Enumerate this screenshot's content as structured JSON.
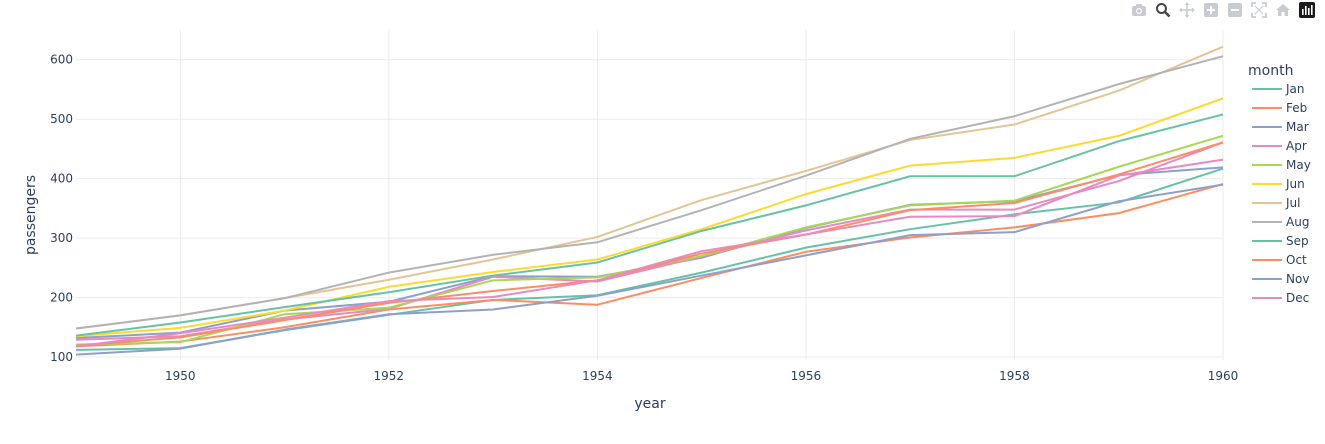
{
  "modebar": {
    "buttons": [
      "camera-icon",
      "zoom-icon",
      "pan-icon",
      "zoom-in-icon",
      "zoom-out-icon",
      "autoscale-icon",
      "reset-axes-icon",
      "plotly-logo-icon"
    ]
  },
  "chart_data": {
    "type": "line",
    "xlabel": "year",
    "ylabel": "passengers",
    "legend_title": "month",
    "legend_position": "right",
    "grid": true,
    "xlim": [
      1949,
      1960
    ],
    "ylim": [
      95,
      650
    ],
    "xticks": [
      1950,
      1952,
      1954,
      1956,
      1958,
      1960
    ],
    "yticks": [
      100,
      200,
      300,
      400,
      500,
      600
    ],
    "x": [
      1949,
      1950,
      1951,
      1952,
      1953,
      1954,
      1955,
      1956,
      1957,
      1958,
      1959,
      1960
    ],
    "series": [
      {
        "name": "Jan",
        "color": "#66c2a5",
        "values": [
          112,
          115,
          145,
          171,
          196,
          204,
          242,
          284,
          315,
          340,
          360,
          417
        ]
      },
      {
        "name": "Feb",
        "color": "#fc8d62",
        "values": [
          118,
          126,
          150,
          180,
          196,
          188,
          233,
          277,
          301,
          318,
          342,
          391
        ]
      },
      {
        "name": "Mar",
        "color": "#8da0cb",
        "values": [
          132,
          141,
          178,
          193,
          236,
          235,
          267,
          317,
          356,
          362,
          406,
          419
        ]
      },
      {
        "name": "Apr",
        "color": "#e78ac3",
        "values": [
          129,
          135,
          163,
          181,
          235,
          227,
          269,
          313,
          348,
          348,
          396,
          461
        ]
      },
      {
        "name": "May",
        "color": "#a6d854",
        "values": [
          121,
          125,
          172,
          183,
          229,
          234,
          270,
          318,
          355,
          363,
          420,
          472
        ]
      },
      {
        "name": "Jun",
        "color": "#ffd92f",
        "values": [
          135,
          149,
          178,
          218,
          243,
          264,
          315,
          374,
          422,
          435,
          472,
          535
        ]
      },
      {
        "name": "Jul",
        "color": "#e5c494",
        "values": [
          148,
          170,
          199,
          230,
          264,
          302,
          364,
          413,
          465,
          491,
          548,
          622
        ]
      },
      {
        "name": "Aug",
        "color": "#b3b3b3",
        "values": [
          148,
          170,
          199,
          242,
          272,
          293,
          347,
          405,
          467,
          505,
          559,
          606
        ]
      },
      {
        "name": "Sep",
        "color": "#66c2a5",
        "values": [
          136,
          158,
          184,
          209,
          237,
          259,
          312,
          355,
          404,
          404,
          463,
          508
        ]
      },
      {
        "name": "Oct",
        "color": "#fc8d62",
        "values": [
          119,
          133,
          162,
          191,
          211,
          229,
          274,
          306,
          347,
          359,
          407,
          461
        ]
      },
      {
        "name": "Nov",
        "color": "#8da0cb",
        "values": [
          104,
          114,
          146,
          172,
          180,
          203,
          237,
          271,
          305,
          310,
          362,
          390
        ]
      },
      {
        "name": "Dec",
        "color": "#e78ac3",
        "values": [
          118,
          140,
          166,
          194,
          201,
          229,
          278,
          306,
          336,
          337,
          405,
          432
        ]
      }
    ]
  }
}
